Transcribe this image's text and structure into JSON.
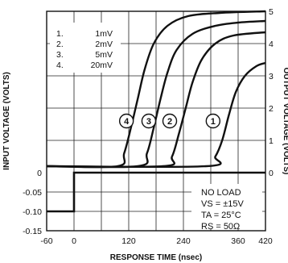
{
  "chart_data": {
    "type": "line",
    "xlabel": "RESPONSE TIME (nsec)",
    "ylabel_left": "INPUT VOLTAGE (VOLTS)",
    "ylabel_right": "OUTPUT VOLTAGE (VOLTS)",
    "x_ticks": [
      "-60",
      "0",
      "120",
      "240",
      "360",
      "420"
    ],
    "x_tick_values": [
      -60,
      0,
      120,
      240,
      360,
      420
    ],
    "xlim": [
      -60,
      420
    ],
    "y_left_ticks": [
      "0",
      "-0.05",
      "-0.10",
      "-0.15"
    ],
    "y_left_tick_values": [
      0,
      -0.05,
      -0.1,
      -0.15
    ],
    "y_left_lim": [
      -0.15,
      0
    ],
    "y_right_ticks": [
      "5",
      "4",
      "3",
      "2",
      "1",
      "0"
    ],
    "y_right_tick_values": [
      5,
      4,
      3,
      2,
      1,
      0
    ],
    "y_right_lim": [
      0,
      5
    ],
    "grid": true,
    "legend": [
      {
        "num": "1.",
        "value": "1mV"
      },
      {
        "num": "2.",
        "value": "2mV"
      },
      {
        "num": "3.",
        "value": "5mV"
      },
      {
        "num": "4.",
        "value": "20mV"
      }
    ],
    "conditions": [
      "NO LOAD",
      "VS = ±15V",
      "TA = 25°C",
      "RS = 50Ω"
    ],
    "curve_labels": [
      "4",
      "3",
      "2",
      "1"
    ],
    "input_step": [
      {
        "x": -60,
        "v": -0.1
      },
      {
        "x": 0,
        "v": -0.1
      },
      {
        "x": 0,
        "v": 0
      },
      {
        "x": 420,
        "v": 0
      }
    ],
    "series": [
      {
        "label": "1",
        "points": [
          [
            -60,
            0.2
          ],
          [
            290,
            0.2
          ],
          [
            310,
            0.5
          ],
          [
            325,
            1.0
          ],
          [
            340,
            1.8
          ],
          [
            355,
            2.5
          ],
          [
            375,
            3.0
          ],
          [
            400,
            3.3
          ],
          [
            420,
            3.4
          ]
        ]
      },
      {
        "label": "2",
        "points": [
          [
            -60,
            0.2
          ],
          [
            195,
            0.2
          ],
          [
            215,
            0.5
          ],
          [
            230,
            1.2
          ],
          [
            245,
            2.0
          ],
          [
            260,
            2.8
          ],
          [
            280,
            3.5
          ],
          [
            310,
            4.0
          ],
          [
            350,
            4.25
          ],
          [
            420,
            4.35
          ]
        ]
      },
      {
        "label": "3",
        "points": [
          [
            -60,
            0.2
          ],
          [
            140,
            0.2
          ],
          [
            160,
            0.6
          ],
          [
            175,
            1.4
          ],
          [
            190,
            2.3
          ],
          [
            205,
            3.1
          ],
          [
            225,
            3.8
          ],
          [
            260,
            4.3
          ],
          [
            310,
            4.55
          ],
          [
            360,
            4.65
          ],
          [
            420,
            4.7
          ]
        ]
      },
      {
        "label": "4",
        "points": [
          [
            -60,
            0.2
          ],
          [
            95,
            0.2
          ],
          [
            110,
            0.6
          ],
          [
            125,
            1.4
          ],
          [
            140,
            2.3
          ],
          [
            155,
            3.2
          ],
          [
            175,
            4.0
          ],
          [
            205,
            4.55
          ],
          [
            250,
            4.85
          ],
          [
            320,
            4.95
          ],
          [
            420,
            5.0
          ]
        ]
      }
    ],
    "marker_x": {
      "4": 115,
      "3": 164,
      "2": 210,
      "1": 305
    },
    "marker_y": 1.6
  }
}
